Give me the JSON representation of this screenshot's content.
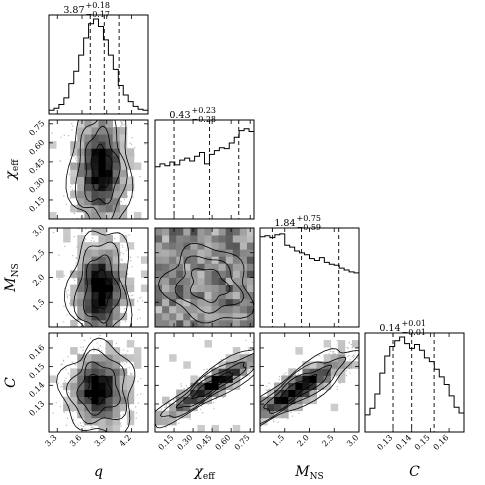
{
  "chart_data": {
    "type": "corner",
    "params": [
      {
        "key": "q",
        "label_main": "q",
        "label_sub": "",
        "range": [
          3.2,
          4.4
        ],
        "ticks": [
          3.3,
          3.6,
          3.9,
          4.2
        ],
        "tick_labels": [
          "3.3",
          "3.6",
          "3.9",
          "4.2"
        ],
        "median": 3.87,
        "q_low": 3.7,
        "q_high": 4.05,
        "title_value": "3.87",
        "title_plus": "+0.18",
        "title_minus": "−0.17",
        "hist": [
          0.04,
          0.06,
          0.1,
          0.17,
          0.32,
          0.45,
          0.62,
          0.8,
          0.95,
          1.0,
          0.92,
          0.78,
          0.62,
          0.47,
          0.3,
          0.2,
          0.13,
          0.08,
          0.05,
          0.04
        ]
      },
      {
        "key": "chi_eff",
        "label_main": "χ",
        "label_sub": "eff",
        "range": [
          0.0,
          0.78
        ],
        "ticks": [
          0.15,
          0.3,
          0.45,
          0.6,
          0.75
        ],
        "tick_labels": [
          "0.15",
          "0.30",
          "0.45",
          "0.60",
          "0.75"
        ],
        "median": 0.43,
        "q_low": 0.15,
        "q_high": 0.66,
        "title_value": "0.43",
        "title_plus": "+0.23",
        "title_minus": "−0.28",
        "hist": [
          0.55,
          0.58,
          0.56,
          0.6,
          0.57,
          0.62,
          0.64,
          0.61,
          0.66,
          0.7,
          0.58,
          0.68,
          0.72,
          0.75,
          0.74,
          0.8,
          0.86,
          0.93,
          0.95,
          0.92
        ]
      },
      {
        "key": "M_NS",
        "label_main": "M",
        "label_sub": "NS",
        "range": [
          1.0,
          3.0
        ],
        "ticks": [
          1.5,
          2.0,
          2.5,
          3.0
        ],
        "tick_labels": [
          "1.5",
          "2.0",
          "2.5",
          "3.0"
        ],
        "median": 1.84,
        "q_low": 1.25,
        "q_high": 2.59,
        "title_value": "1.84",
        "title_plus": "+0.75",
        "title_minus": "−0.59",
        "hist": [
          0.95,
          0.96,
          0.94,
          0.97,
          0.98,
          0.86,
          0.84,
          0.8,
          0.78,
          0.76,
          0.72,
          0.7,
          0.73,
          0.68,
          0.66,
          0.65,
          0.62,
          0.6,
          0.58,
          0.57
        ]
      },
      {
        "key": "C",
        "label_main": "C",
        "label_sub": "",
        "range": [
          0.115,
          0.168
        ],
        "ticks": [
          0.13,
          0.14,
          0.15,
          0.16
        ],
        "tick_labels": [
          "0.13",
          "0.14",
          "0.15",
          "0.16"
        ],
        "median": 0.14,
        "q_low": 0.13,
        "q_high": 0.152,
        "title_value": "0.14",
        "title_plus": "+0.01",
        "title_minus": "−0.01",
        "hist": [
          0.18,
          0.25,
          0.4,
          0.62,
          0.8,
          0.9,
          0.96,
          1.0,
          0.93,
          0.88,
          0.92,
          0.86,
          0.78,
          0.74,
          0.66,
          0.58,
          0.5,
          0.38,
          0.26,
          0.2
        ]
      }
    ],
    "pairs": [
      {
        "row": 1,
        "col": 0,
        "shape": "vertical",
        "cx": 3.83,
        "cy": 0.4,
        "sx": 0.17,
        "sy": 0.24,
        "rho": 0.0
      },
      {
        "row": 2,
        "col": 0,
        "shape": "vertical",
        "cx": 3.83,
        "cy": 1.75,
        "sx": 0.17,
        "sy": 0.55,
        "rho": 0.0
      },
      {
        "row": 2,
        "col": 1,
        "shape": "broad",
        "cx": 0.42,
        "cy": 1.85,
        "sx": 0.24,
        "sy": 0.55,
        "rho": -0.15
      },
      {
        "row": 3,
        "col": 0,
        "shape": "blob",
        "cx": 3.8,
        "cy": 0.138,
        "sx": 0.2,
        "sy": 0.011,
        "rho": 0.0
      },
      {
        "row": 3,
        "col": 1,
        "shape": "band",
        "cx": 0.45,
        "cy": 0.14,
        "sx": 0.22,
        "sy": 0.01,
        "rho": 0.92
      },
      {
        "row": 3,
        "col": 2,
        "shape": "band",
        "cx": 1.75,
        "cy": 0.138,
        "sx": 0.55,
        "sy": 0.01,
        "rho": 0.88
      }
    ]
  }
}
